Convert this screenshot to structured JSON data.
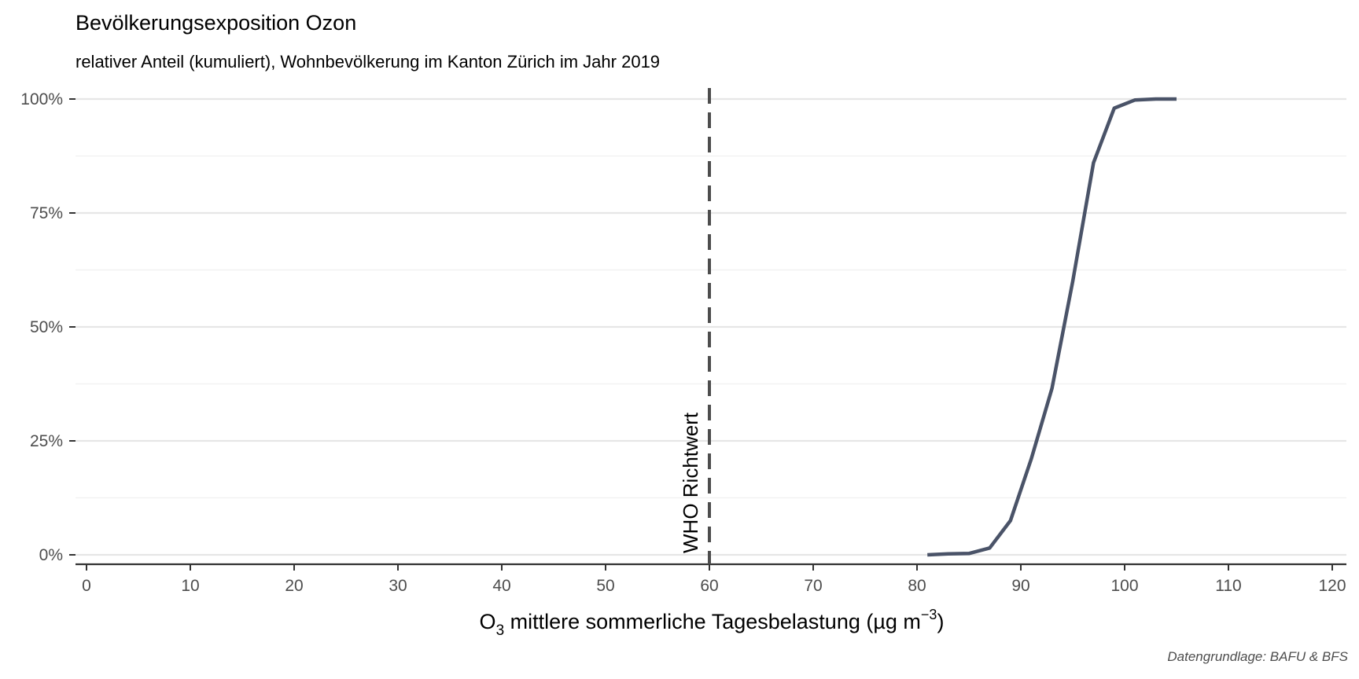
{
  "chart_data": {
    "type": "line",
    "title": "Bevölkerungsexposition Ozon",
    "subtitle": "relativer Anteil (kumuliert), Wohnbevölkerung im Kanton Zürich im Jahr 2019",
    "xlabel_main": "O",
    "xlabel_sub": "3",
    "xlabel_rest": " mittlere sommerliche Tagesbelastung (µg m",
    "xlabel_sup": "−3",
    "xlabel_end": ")",
    "ylabel": "",
    "caption": "Datengrundlage: BAFU & BFS",
    "xlim": [
      0,
      120
    ],
    "ylim": [
      0,
      1
    ],
    "x_ticks": [
      0,
      10,
      20,
      30,
      40,
      50,
      60,
      70,
      80,
      90,
      100,
      110,
      120
    ],
    "y_ticks": [
      0,
      0.25,
      0.5,
      0.75,
      1.0
    ],
    "y_tick_labels": [
      "0%",
      "25%",
      "50%",
      "75%",
      "100%"
    ],
    "grid": true,
    "series": [
      {
        "color": "#4a5368",
        "x": [
          81,
          83,
          85,
          87,
          89,
          91,
          93,
          95,
          97,
          99,
          101,
          103,
          105
        ],
        "y": [
          0.0,
          0.002,
          0.003,
          0.015,
          0.075,
          0.21,
          0.365,
          0.6,
          0.86,
          0.98,
          0.998,
          1.0,
          1.0
        ]
      }
    ],
    "reference_line": {
      "x": 60,
      "label": "WHO Richtwert",
      "color": "#4d4d4d",
      "style": "dashed"
    }
  }
}
